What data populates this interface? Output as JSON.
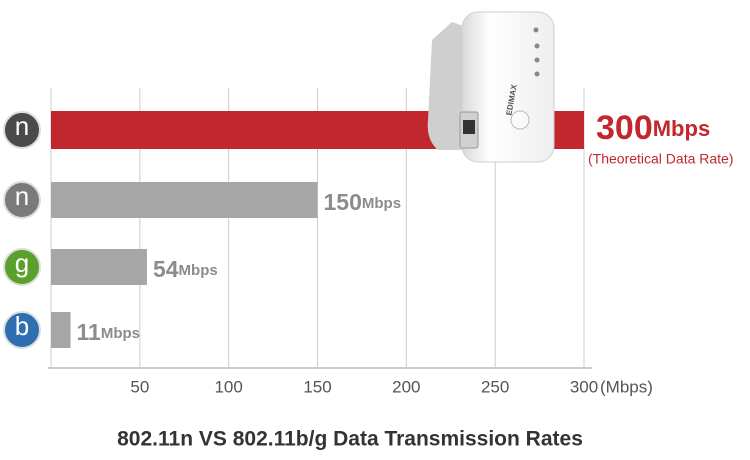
{
  "chart_data": {
    "type": "hbar",
    "title": "802.11n VS 802.11b/g Data Transmission Rates",
    "categories": [
      "n",
      "n",
      "g",
      "b"
    ],
    "category_colors": [
      "#4a4a4a",
      "#7a7a7a",
      "#5aa02c",
      "#2f6fb0"
    ],
    "values": [
      300,
      150,
      54,
      11
    ],
    "value_labels": [
      "300Mbps",
      "150Mbps",
      "54Mbps",
      "11Mbps"
    ],
    "colors": [
      "#c1272d",
      "#a6a6a6",
      "#a6a6a6",
      "#a6a6a6"
    ],
    "annotation": "(Theoretical Data Rate)",
    "x_unit": "(Mbps)",
    "xlim": [
      0,
      300
    ],
    "xticks": [
      50,
      100,
      150,
      200,
      250,
      300
    ],
    "grid": true,
    "device_brand": "EDIMAX"
  }
}
